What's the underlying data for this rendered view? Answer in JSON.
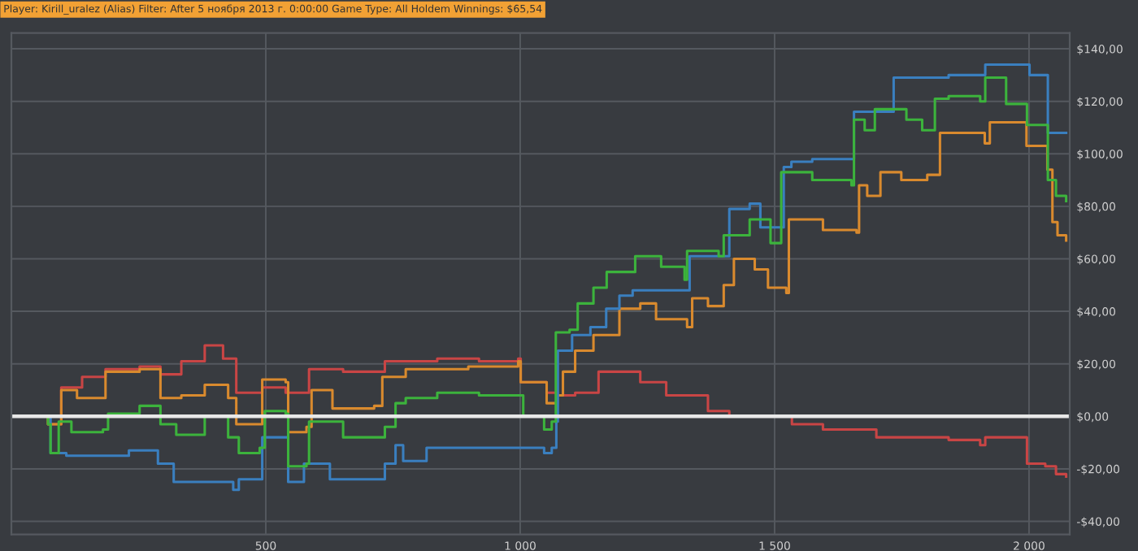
{
  "chart_data": {
    "type": "step",
    "title": "Player: Kirill_uralez (Alias) Filter: After 5 ноября 2013 г. 0:00:00 Game Type: All Holdem Winnings: $65,54",
    "xlim": [
      0,
      2080
    ],
    "ylim": [
      -45,
      146
    ],
    "xticks": [
      {
        "value": 500,
        "label": "500"
      },
      {
        "value": 1000,
        "label": "1 000"
      },
      {
        "value": 1500,
        "label": "1 500"
      },
      {
        "value": 2000,
        "label": "2 000"
      }
    ],
    "yticks": [
      {
        "value": -40,
        "label": "-$40,00"
      },
      {
        "value": -20,
        "label": "-$20,00"
      },
      {
        "value": 0,
        "label": "$0,00"
      },
      {
        "value": 20,
        "label": "$20,00"
      },
      {
        "value": 40,
        "label": "$40,00"
      },
      {
        "value": 60,
        "label": "$60,00"
      },
      {
        "value": 80,
        "label": "$80,00"
      },
      {
        "value": 100,
        "label": "$100,00"
      },
      {
        "value": 120,
        "label": "$120,00"
      },
      {
        "value": 140,
        "label": "$140,00"
      }
    ],
    "grid": true,
    "ref_lines": [
      {
        "axis": "y",
        "value": 0,
        "color": "#e8e8e8"
      }
    ],
    "series": [
      {
        "color": "#c94545",
        "x": [
          0,
          72,
          98,
          139,
          185,
          252,
          293,
          334,
          380,
          416,
          442,
          493,
          539,
          585,
          652,
          734,
          837,
          919,
          996,
          1001,
          1052,
          1073,
          1108,
          1154,
          1236,
          1287,
          1369,
          1411,
          1534,
          1595,
          1700,
          1842,
          1904,
          1914,
          1996,
          2032,
          2053,
          2073
        ],
        "values": [
          0,
          -3,
          11,
          15,
          18,
          19,
          16,
          21,
          27,
          22,
          9,
          11,
          9,
          18,
          17,
          21,
          22,
          21,
          22,
          13,
          9,
          8,
          9,
          17,
          13,
          8,
          2,
          0,
          -3,
          -5,
          -8,
          -9,
          -11,
          -8,
          -18,
          -19,
          -22,
          -23
        ]
      },
      {
        "color": "#d98a2e",
        "x": [
          0,
          72,
          98,
          129,
          185,
          252,
          293,
          334,
          380,
          426,
          442,
          493,
          539,
          544,
          580,
          590,
          631,
          713,
          729,
          775,
          898,
          996,
          1001,
          1052,
          1073,
          1084,
          1108,
          1144,
          1195,
          1236,
          1267,
          1328,
          1338,
          1369,
          1400,
          1420,
          1461,
          1487,
          1523,
          1528,
          1595,
          1661,
          1666,
          1682,
          1708,
          1749,
          1800,
          1825,
          1913,
          1923,
          1995,
          2036,
          2046,
          2056,
          2073
        ],
        "values": [
          0,
          -3,
          10,
          7,
          17,
          18,
          7,
          8,
          12,
          7,
          -3,
          14,
          13,
          -6,
          -4,
          10,
          3,
          4,
          15,
          18,
          19,
          21,
          13,
          5,
          8,
          17,
          25,
          31,
          41,
          43,
          37,
          34,
          45,
          42,
          50,
          60,
          56,
          49,
          47,
          75,
          71,
          70,
          88,
          84,
          93,
          90,
          92,
          108,
          104,
          112,
          103,
          94,
          74,
          69,
          67
        ]
      },
      {
        "color": "#3a7fbf",
        "x": [
          0,
          72,
          77,
          108,
          231,
          288,
          319,
          436,
          447,
          493,
          539,
          544,
          575,
          626,
          734,
          755,
          770,
          816,
          1037,
          1047,
          1062,
          1071,
          1074,
          1102,
          1138,
          1169,
          1195,
          1221,
          1328,
          1333,
          1390,
          1411,
          1451,
          1472,
          1513,
          1518,
          1533,
          1574,
          1651,
          1656,
          1734,
          1842,
          1914,
          1990,
          2001,
          2032,
          2037,
          2073
        ],
        "values": [
          0,
          0,
          -14,
          -15,
          -13,
          -18,
          -25,
          -28,
          -24,
          -8,
          -8,
          -25,
          -18,
          -24,
          -18,
          -11,
          -17,
          -12,
          -12,
          -14,
          -12,
          -2,
          25,
          31,
          34,
          41,
          46,
          48,
          48,
          61,
          61,
          79,
          81,
          72,
          72,
          95,
          97,
          98,
          98,
          116,
          129,
          130,
          134,
          134,
          130,
          130,
          108,
          108
        ]
      },
      {
        "color": "#3cb33c",
        "x": [
          0,
          17,
          72,
          77,
          93,
          118,
          180,
          190,
          252,
          293,
          324,
          380,
          426,
          447,
          488,
          498,
          539,
          544,
          580,
          585,
          652,
          734,
          755,
          775,
          837,
          919,
          1001,
          1006,
          1047,
          1062,
          1070,
          1097,
          1113,
          1144,
          1170,
          1226,
          1277,
          1323,
          1328,
          1390,
          1400,
          1451,
          1492,
          1513,
          1574,
          1651,
          1656,
          1677,
          1697,
          1759,
          1790,
          1815,
          1842,
          1904,
          1914,
          1955,
          1996,
          2032,
          2037,
          2053,
          2073
        ],
        "values": [
          0,
          0,
          -3,
          -14,
          -2,
          -6,
          -5,
          1,
          4,
          -3,
          -7,
          0,
          -8,
          -14,
          -12,
          2,
          1,
          -19,
          -18,
          -2,
          -8,
          -4,
          5,
          7,
          9,
          8,
          8,
          0,
          -5,
          -2,
          32,
          33,
          43,
          49,
          55,
          61,
          57,
          52,
          63,
          61,
          69,
          75,
          66,
          93,
          90,
          88,
          113,
          109,
          117,
          113,
          109,
          121,
          122,
          120,
          129,
          119,
          111,
          111,
          90,
          84,
          82
        ]
      }
    ]
  }
}
